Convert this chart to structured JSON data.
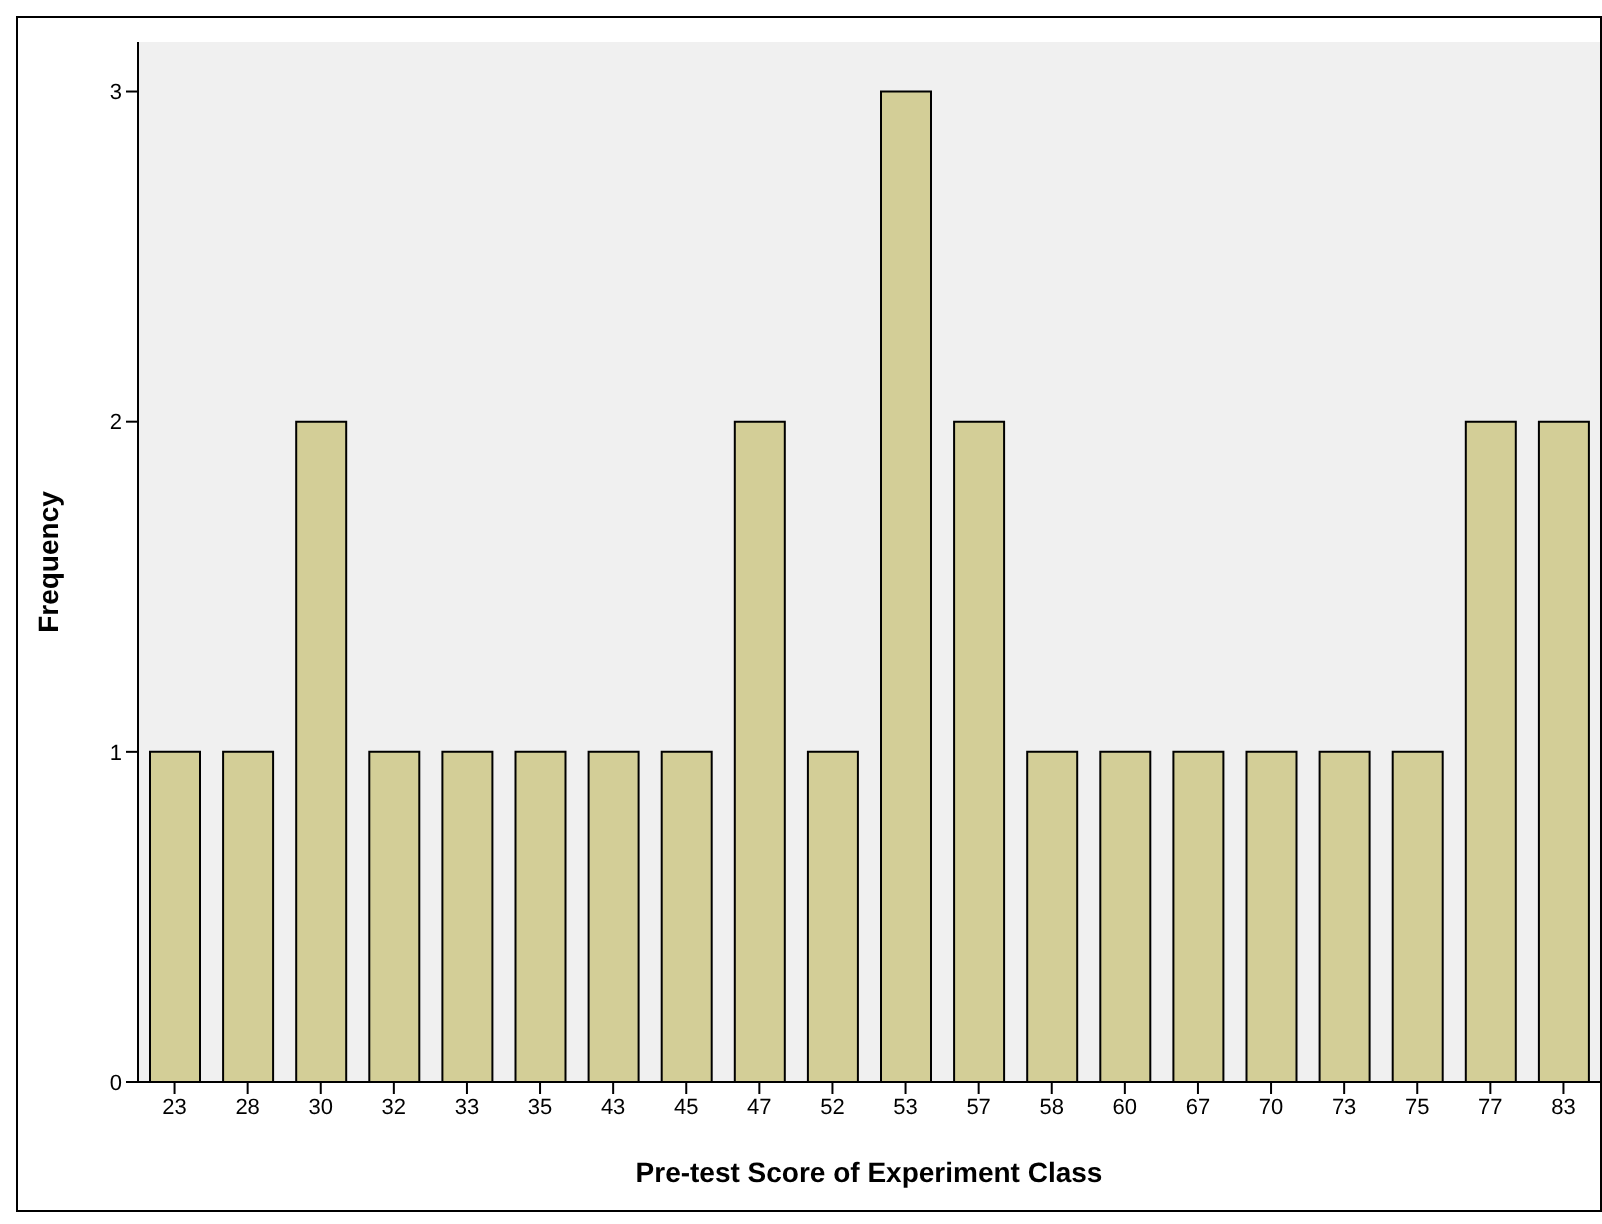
{
  "chart_data": {
    "type": "bar",
    "xlabel": "Pre-test Score of Experiment Class",
    "ylabel": "Frequency",
    "categories": [
      "23",
      "28",
      "30",
      "32",
      "33",
      "35",
      "43",
      "45",
      "47",
      "52",
      "53",
      "57",
      "58",
      "60",
      "67",
      "70",
      "73",
      "75",
      "77",
      "83"
    ],
    "values": [
      1,
      1,
      2,
      1,
      1,
      1,
      1,
      1,
      2,
      1,
      3,
      2,
      1,
      1,
      1,
      1,
      1,
      1,
      2,
      2
    ],
    "color": "#d3ce97",
    "ylim": [
      0,
      3.15
    ],
    "yticks": [
      0,
      1,
      2,
      3
    ],
    "grid": false,
    "legend": false
  }
}
